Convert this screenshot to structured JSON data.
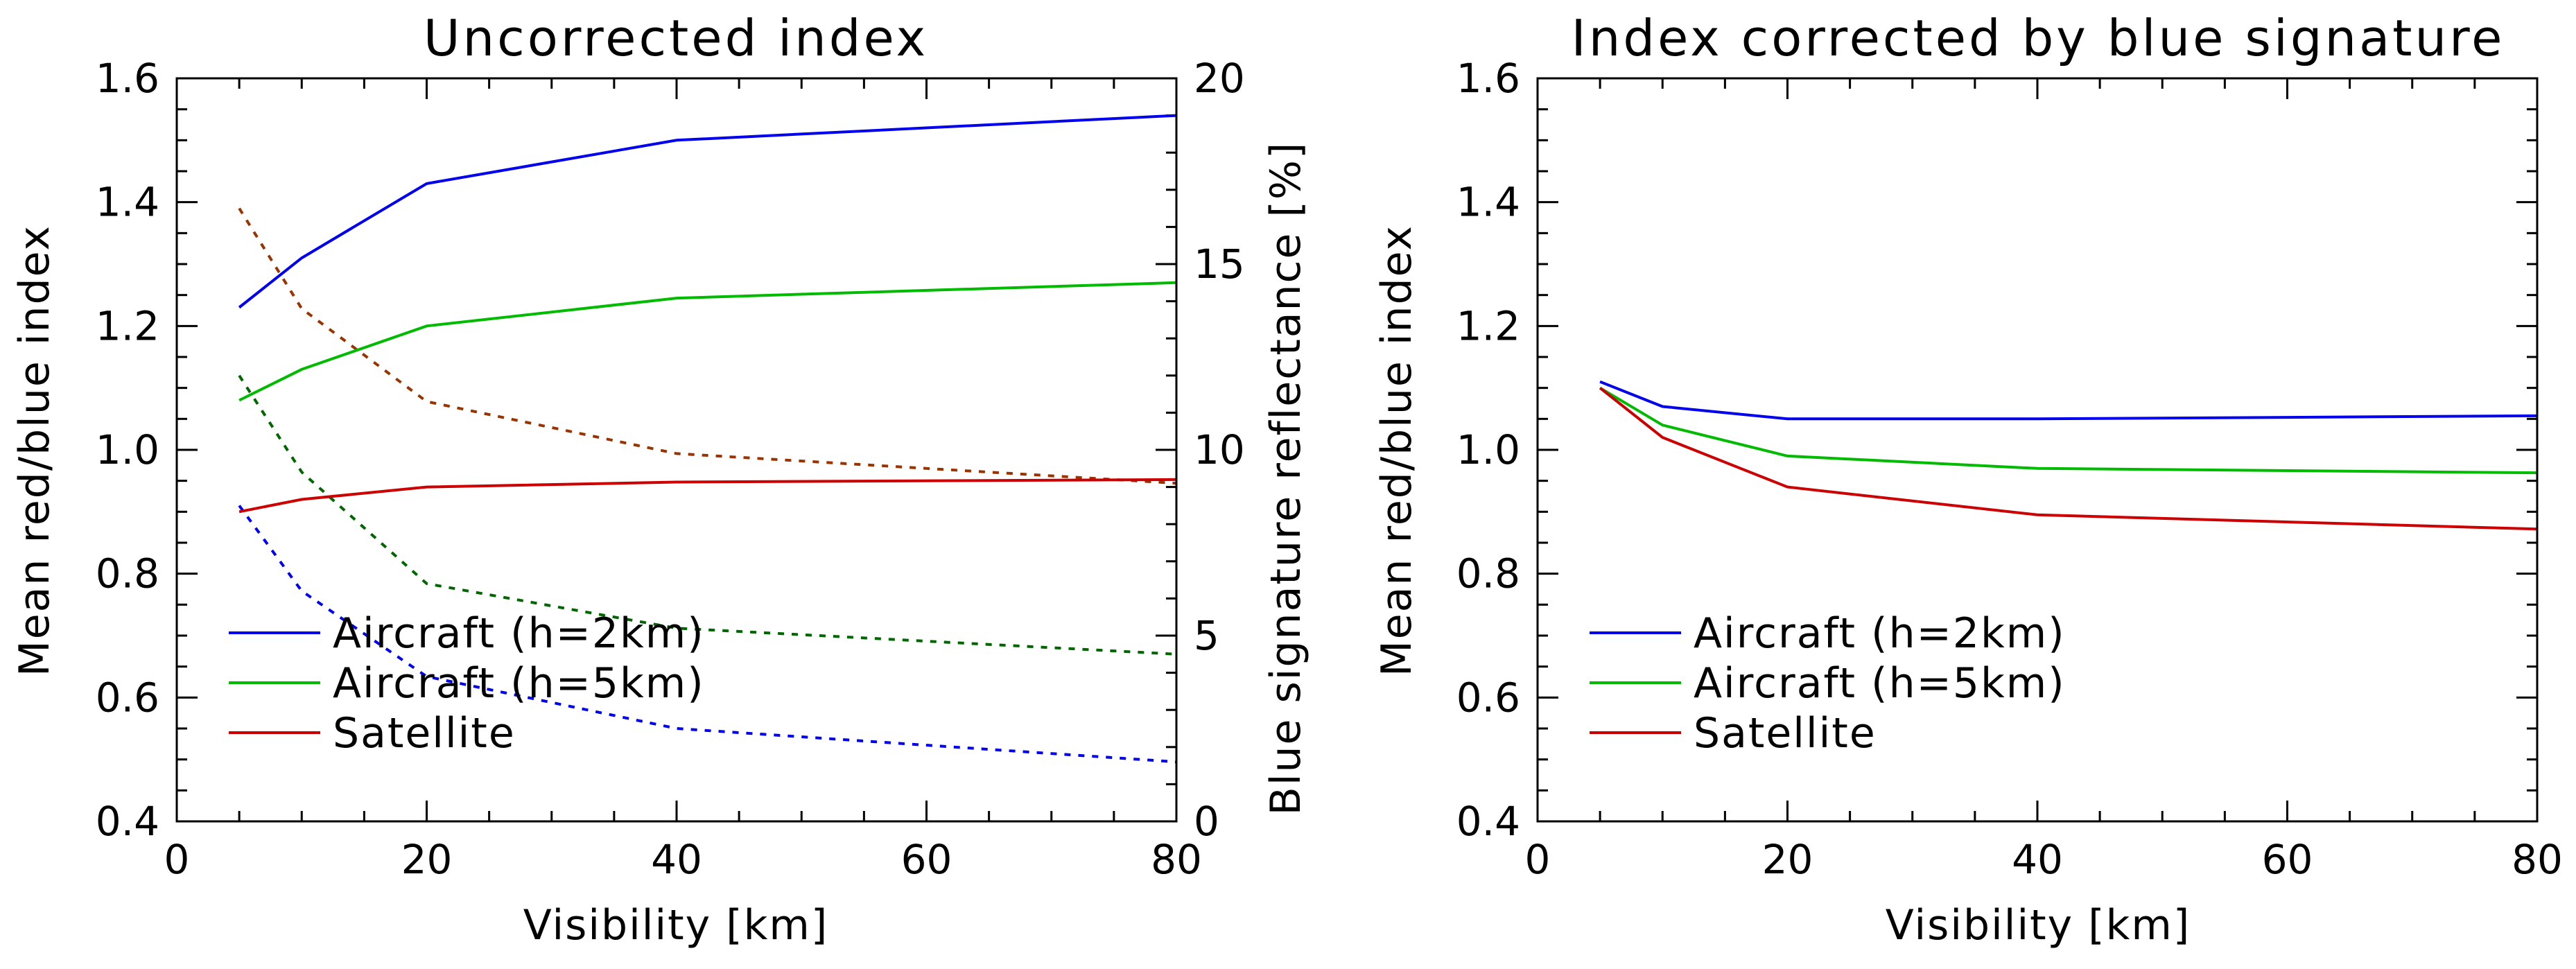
{
  "chart_data": [
    {
      "type": "line",
      "title": "Uncorrected index",
      "xlabel": "Visibility [km]",
      "ylabel": "Mean red/blue index",
      "y2label": "Blue signature reflectance [%]",
      "xlim": [
        0,
        80
      ],
      "ylim": [
        0.4,
        1.6
      ],
      "y2lim": [
        0,
        20
      ],
      "xticks": [
        "0",
        "20",
        "40",
        "60",
        "80"
      ],
      "yticks": [
        "0.4",
        "0.6",
        "0.8",
        "1.0",
        "1.2",
        "1.4",
        "1.6"
      ],
      "y2ticks": [
        "0",
        "5",
        "10",
        "15",
        "20"
      ],
      "x": [
        5,
        10,
        20,
        40,
        80
      ],
      "series": [
        {
          "name": "Aircraft (h=2km)",
          "color": "#0000ee",
          "values": [
            1.23,
            1.31,
            1.43,
            1.5,
            1.54
          ]
        },
        {
          "name": "Aircraft (h=5km)",
          "color": "#00bb00",
          "values": [
            1.08,
            1.13,
            1.2,
            1.245,
            1.27
          ]
        },
        {
          "name": "Satellite",
          "color": "#cc0000",
          "values": [
            0.9,
            0.92,
            0.94,
            0.948,
            0.952
          ]
        }
      ],
      "secondary_series": [
        {
          "name": "Aircraft (h=2km) blue signature reflectance",
          "color": "#0000ee",
          "values": [
            8.5,
            6.2,
            3.9,
            2.5,
            1.6
          ]
        },
        {
          "name": "Aircraft (h=5km) blue signature reflectance",
          "color": "#006600",
          "values": [
            12.0,
            9.4,
            6.4,
            5.2,
            4.5
          ]
        },
        {
          "name": "Satellite blue signature reflectance",
          "color": "#993300",
          "values": [
            16.5,
            13.8,
            11.3,
            9.9,
            9.1
          ]
        }
      ],
      "legend": "lower-left"
    },
    {
      "type": "line",
      "title": "Index corrected by blue signature",
      "xlabel": "Visibility [km]",
      "ylabel": "Mean red/blue index",
      "xlim": [
        0,
        80
      ],
      "ylim": [
        0.4,
        1.6
      ],
      "xticks": [
        "0",
        "20",
        "40",
        "60",
        "80"
      ],
      "yticks": [
        "0.4",
        "0.6",
        "0.8",
        "1.0",
        "1.2",
        "1.4",
        "1.6"
      ],
      "x": [
        5,
        10,
        20,
        40,
        80
      ],
      "series": [
        {
          "name": "Aircraft (h=2km)",
          "color": "#0000ee",
          "values": [
            1.11,
            1.07,
            1.05,
            1.05,
            1.055
          ]
        },
        {
          "name": "Aircraft (h=5km)",
          "color": "#00bb00",
          "values": [
            1.1,
            1.04,
            0.99,
            0.97,
            0.963
          ]
        },
        {
          "name": "Satellite",
          "color": "#cc0000",
          "values": [
            1.1,
            1.02,
            0.94,
            0.895,
            0.872
          ]
        }
      ],
      "legend": "lower-left"
    }
  ]
}
